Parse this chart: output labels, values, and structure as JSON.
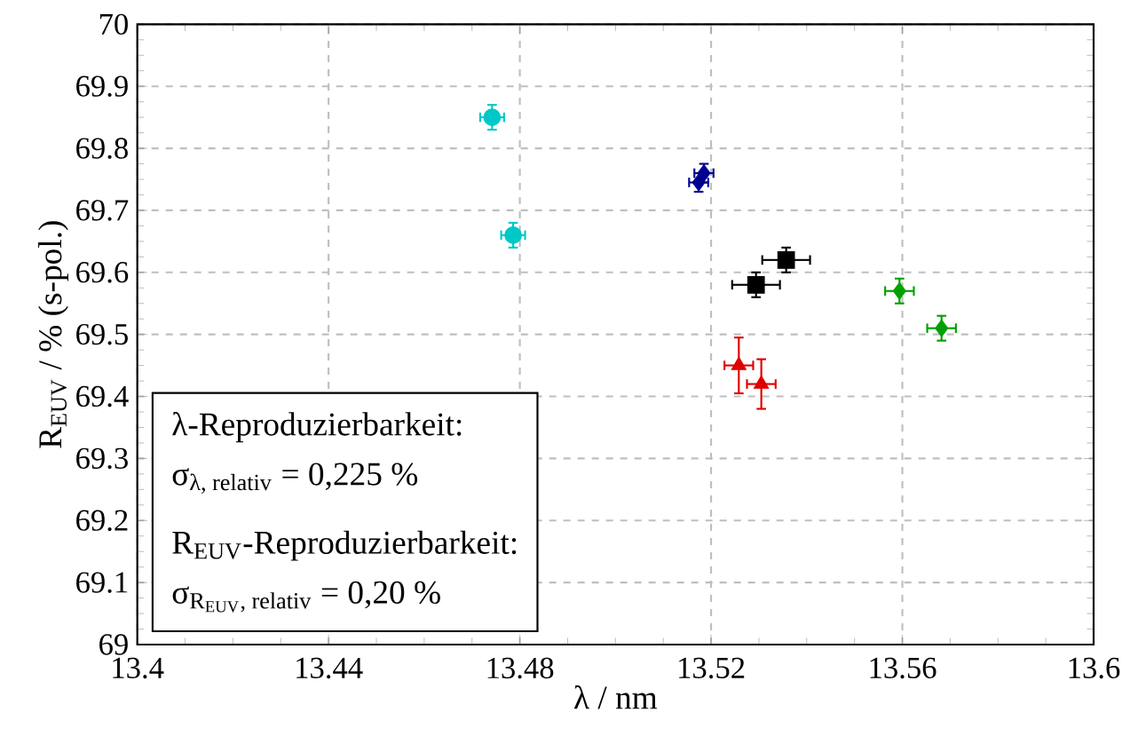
{
  "chart_data": {
    "type": "scatter",
    "xlabel": "λ / nm",
    "ylabel": "R$_{EUV}$ / % (s-pol.)",
    "xlim": [
      13.4,
      13.6
    ],
    "ylim": [
      69,
      70
    ],
    "xticks": [
      13.4,
      13.44,
      13.48,
      13.52,
      13.56,
      13.6
    ],
    "yticks": [
      69,
      69.1,
      69.2,
      69.3,
      69.4,
      69.5,
      69.6,
      69.7,
      69.8,
      69.9,
      70
    ],
    "grid": true,
    "series": [
      {
        "color": "#00c8c8",
        "marker": "circle",
        "x": [
          13.4742,
          13.4786
        ],
        "values": [
          69.85,
          69.66
        ],
        "xerrors": [
          0.0025,
          0.0025
        ],
        "errors": [
          0.02,
          0.02
        ]
      },
      {
        "color": "#000090",
        "marker": "diamond",
        "x": [
          13.5185,
          13.5174
        ],
        "values": [
          69.76,
          69.745
        ],
        "xerrors": [
          0.002,
          0.002
        ],
        "errors": [
          0.015,
          0.015
        ]
      },
      {
        "color": "#000000",
        "marker": "square",
        "x": [
          13.5294,
          13.5357
        ],
        "values": [
          69.58,
          69.62
        ],
        "xerrors": [
          0.005,
          0.005
        ],
        "errors": [
          0.02,
          0.02
        ]
      },
      {
        "color": "#00a000",
        "marker": "diamond",
        "x": [
          13.5594,
          13.5682
        ],
        "values": [
          69.57,
          69.51
        ],
        "xerrors": [
          0.003,
          0.003
        ],
        "errors": [
          0.02,
          0.02
        ]
      },
      {
        "color": "#e00000",
        "marker": "triangle",
        "x": [
          13.5258,
          13.5305
        ],
        "values": [
          69.45,
          69.42
        ],
        "xerrors": [
          0.003,
          0.003
        ],
        "errors": [
          0.045,
          0.04
        ]
      }
    ],
    "annotations": [
      "λ-Reproduzierbarkeit:",
      "\\textrm{σ}_{\\textrm{λ, relativ}} \\textrm{ = 0,225 \\%}",
      "R$_{EUV}$-Reproduzierbarkeit:",
      "\\textrm{σ}_{\\textrm{R}_{\\textrm{EUV}}\\textrm{, relativ}} \\textrm{ = 0,20 \\%}"
    ]
  }
}
